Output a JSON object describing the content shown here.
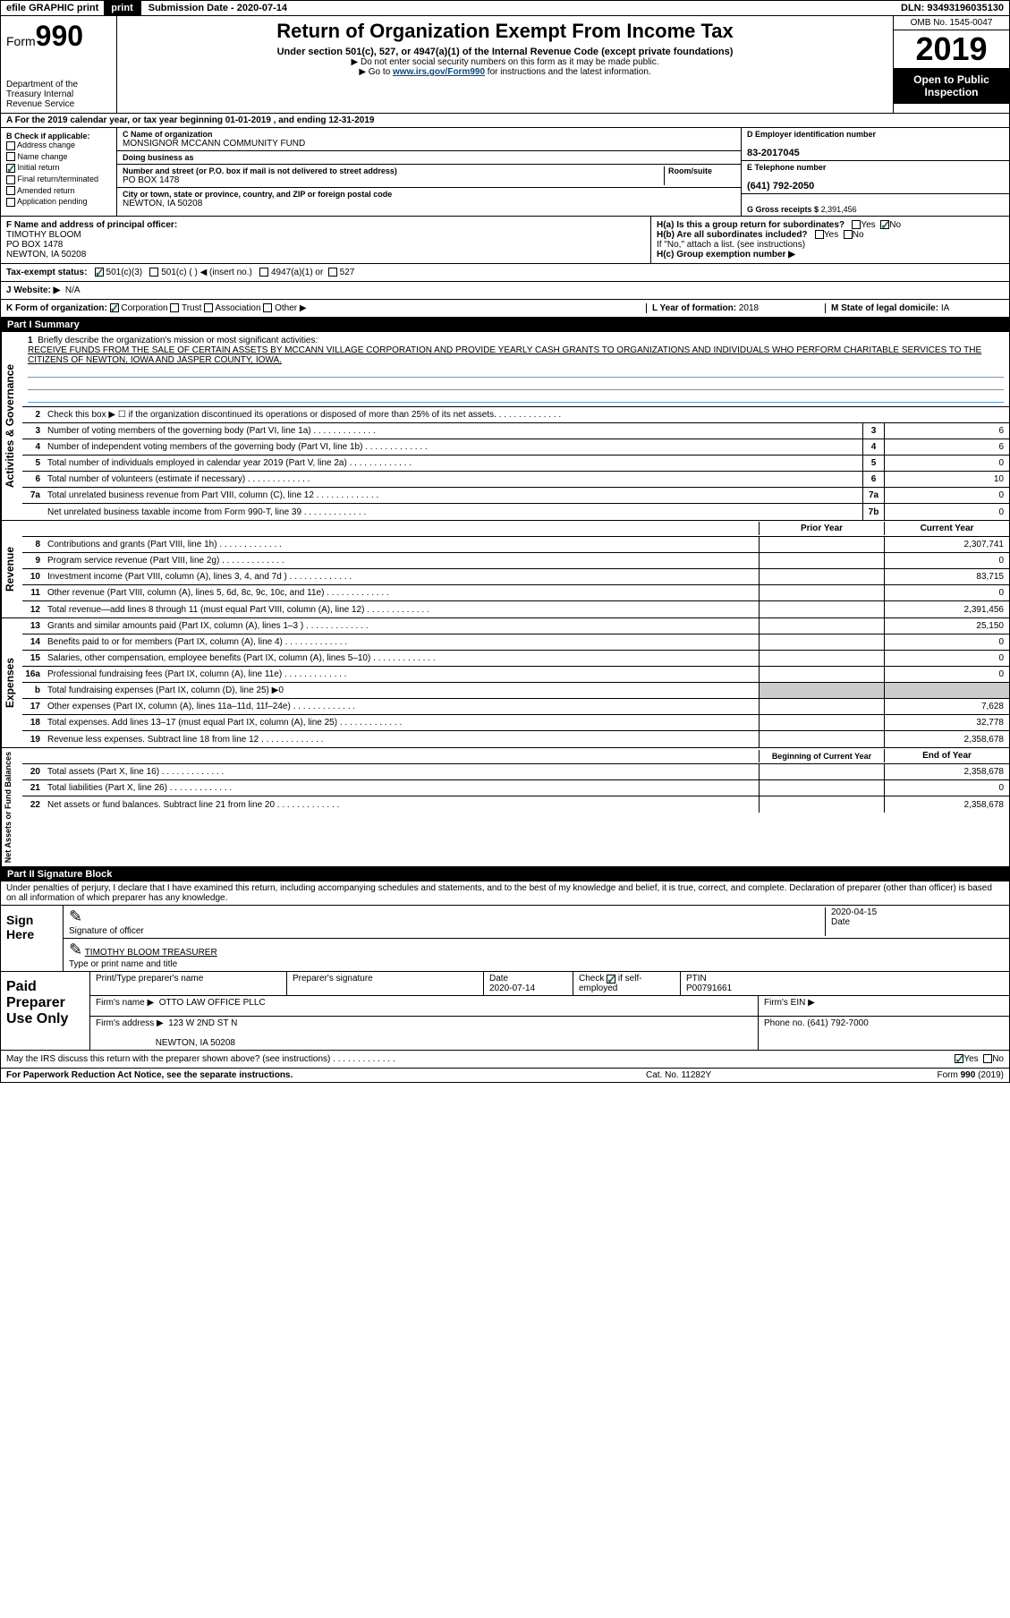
{
  "top": {
    "efile": "efile GRAPHIC print",
    "submission": "Submission Date - 2020-07-14",
    "dln": "DLN: 93493196035130"
  },
  "header": {
    "form": "Form",
    "form_num": "990",
    "dept": "Department of the Treasury Internal Revenue Service",
    "title": "Return of Organization Exempt From Income Tax",
    "sub1": "Under section 501(c), 527, or 4947(a)(1) of the Internal Revenue Code (except private foundations)",
    "sub2": "▶ Do not enter social security numbers on this form as it may be made public.",
    "sub3a": "▶ Go to ",
    "sub3_link": "www.irs.gov/Form990",
    "sub3b": " for instructions and the latest information.",
    "omb": "OMB No. 1545-0047",
    "year": "2019",
    "open": "Open to Public Inspection"
  },
  "line_a": "A For the 2019 calendar year, or tax year beginning 01-01-2019   , and ending 12-31-2019",
  "col_b": {
    "header": "B Check if applicable:",
    "items": [
      "Address change",
      "Name change",
      "Initial return",
      "Final return/terminated",
      "Amended return",
      "Application pending"
    ],
    "checked": 2
  },
  "col_c": {
    "name_label": "C Name of organization",
    "name": "MONSIGNOR MCCANN COMMUNITY FUND",
    "dba_label": "Doing business as",
    "addr_label": "Number and street (or P.O. box if mail is not delivered to street address)",
    "room_label": "Room/suite",
    "addr": "PO BOX 1478",
    "city_label": "City or town, state or province, country, and ZIP or foreign postal code",
    "city": "NEWTON, IA  50208",
    "officer_label": "F Name and address of principal officer:",
    "officer_name": "TIMOTHY BLOOM",
    "officer_addr1": "PO BOX 1478",
    "officer_addr2": "NEWTON, IA  50208"
  },
  "col_d": {
    "ein_label": "D Employer identification number",
    "ein": "83-2017045",
    "phone_label": "E Telephone number",
    "phone": "(641) 792-2050",
    "gross_label": "G Gross receipts $",
    "gross": "2,391,456"
  },
  "row_h": {
    "ha": "H(a)  Is this a group return for subordinates?",
    "ha_no": "No",
    "hb": "H(b)  Are all subordinates included?",
    "hb_note": "If \"No,\" attach a list. (see instructions)",
    "hc": "H(c)  Group exemption number ▶"
  },
  "tax_exempt": {
    "label": "Tax-exempt status:",
    "opt1": "501(c)(3)",
    "opt2": "501(c) (  ) ◀ (insert no.)",
    "opt3": "4947(a)(1) or",
    "opt4": "527"
  },
  "website": {
    "label": "J   Website: ▶",
    "val": "N/A"
  },
  "row_k": {
    "left": "K Form of organization:",
    "opts": [
      "Corporation",
      "Trust",
      "Association",
      "Other ▶"
    ],
    "checked": 0,
    "mid_label": "L Year of formation:",
    "mid_val": "2018",
    "right_label": "M State of legal domicile:",
    "right_val": "IA"
  },
  "part1": {
    "header": "Part I      Summary",
    "briefly_num": "1",
    "briefly_label": "Briefly describe the organization's mission or most significant activities:",
    "briefly_text": "RECEIVE FUNDS FROM THE SALE OF CERTAIN ASSETS BY MCCANN VILLAGE CORPORATION AND PROVIDE YEARLY CASH GRANTS TO ORGANIZATIONS AND INDIVIDUALS WHO PERFORM CHARITABLE SERVICES TO THE CITIZENS OF NEWTON, IOWA AND JASPER COUNTY, IOWA."
  },
  "gov_lines": [
    {
      "num": "2",
      "desc": "Check this box ▶ ☐  if the organization discontinued its operations or disposed of more than 25% of its net assets."
    },
    {
      "num": "3",
      "desc": "Number of voting members of the governing body (Part VI, line 1a)",
      "box": "3",
      "val": "6"
    },
    {
      "num": "4",
      "desc": "Number of independent voting members of the governing body (Part VI, line 1b)",
      "box": "4",
      "val": "6"
    },
    {
      "num": "5",
      "desc": "Total number of individuals employed in calendar year 2019 (Part V, line 2a)",
      "box": "5",
      "val": "0"
    },
    {
      "num": "6",
      "desc": "Total number of volunteers (estimate if necessary)",
      "box": "6",
      "val": "10"
    },
    {
      "num": "7a",
      "desc": "Total unrelated business revenue from Part VIII, column (C), line 12",
      "box": "7a",
      "val": "0"
    },
    {
      "num": "",
      "desc": "Net unrelated business taxable income from Form 990-T, line 39",
      "box": "7b",
      "val": "0"
    }
  ],
  "year_cols": {
    "prior": "Prior Year",
    "current": "Current Year"
  },
  "rev_lines": [
    {
      "num": "8",
      "desc": "Contributions and grants (Part VIII, line 1h)",
      "prior": "",
      "curr": "2,307,741"
    },
    {
      "num": "9",
      "desc": "Program service revenue (Part VIII, line 2g)",
      "prior": "",
      "curr": "0"
    },
    {
      "num": "10",
      "desc": "Investment income (Part VIII, column (A), lines 3, 4, and 7d )",
      "prior": "",
      "curr": "83,715"
    },
    {
      "num": "11",
      "desc": "Other revenue (Part VIII, column (A), lines 5, 6d, 8c, 9c, 10c, and 11e)",
      "prior": "",
      "curr": "0"
    },
    {
      "num": "12",
      "desc": "Total revenue—add lines 8 through 11 (must equal Part VIII, column (A), line 12)",
      "prior": "",
      "curr": "2,391,456"
    }
  ],
  "exp_lines": [
    {
      "num": "13",
      "desc": "Grants and similar amounts paid (Part IX, column (A), lines 1–3 )",
      "prior": "",
      "curr": "25,150"
    },
    {
      "num": "14",
      "desc": "Benefits paid to or for members (Part IX, column (A), line 4)",
      "prior": "",
      "curr": "0"
    },
    {
      "num": "15",
      "desc": "Salaries, other compensation, employee benefits (Part IX, column (A), lines 5–10)",
      "prior": "",
      "curr": "0"
    },
    {
      "num": "16a",
      "desc": "Professional fundraising fees (Part IX, column (A), line 11e)",
      "prior": "",
      "curr": "0"
    },
    {
      "num": "b",
      "desc": "Total fundraising expenses (Part IX, column (D), line 25) ▶0",
      "grey": true
    },
    {
      "num": "17",
      "desc": "Other expenses (Part IX, column (A), lines 11a–11d, 11f–24e)",
      "prior": "",
      "curr": "7,628"
    },
    {
      "num": "18",
      "desc": "Total expenses. Add lines 13–17 (must equal Part IX, column (A), line 25)",
      "prior": "",
      "curr": "32,778"
    },
    {
      "num": "19",
      "desc": "Revenue less expenses. Subtract line 18 from line 12",
      "prior": "",
      "curr": "2,358,678"
    }
  ],
  "net_cols": {
    "begin": "Beginning of Current Year",
    "end": "End of Year"
  },
  "net_lines": [
    {
      "num": "20",
      "desc": "Total assets (Part X, line 16)",
      "begin": "",
      "end": "2,358,678"
    },
    {
      "num": "21",
      "desc": "Total liabilities (Part X, line 26)",
      "begin": "",
      "end": "0"
    },
    {
      "num": "22",
      "desc": "Net assets or fund balances. Subtract line 21 from line 20",
      "begin": "",
      "end": "2,358,678"
    }
  ],
  "part2": {
    "header": "Part II      Signature Block",
    "declaration": "Under penalties of perjury, I declare that I have examined this return, including accompanying schedules and statements, and to the best of my knowledge and belief, it is true, correct, and complete. Declaration of preparer (other than officer) is based on all information of which preparer has any knowledge."
  },
  "sign": {
    "label": "Sign Here",
    "sig_label": "Signature of officer",
    "date_label": "Date",
    "date": "2020-04-15",
    "name": "TIMOTHY BLOOM  TREASURER",
    "name_label": "Type or print name and title"
  },
  "paid": {
    "label": "Paid Preparer Use Only",
    "print_label": "Print/Type preparer's name",
    "sig_label": "Preparer's signature",
    "date_label": "Date",
    "date": "2020-07-14",
    "check_label": "Check ",
    "check_suffix": " if self-employed",
    "ptin_label": "PTIN",
    "ptin": "P00791661",
    "firm_name_label": "Firm's name    ▶",
    "firm_name": "OTTO LAW OFFICE PLLC",
    "firm_ein_label": "Firm's EIN ▶",
    "firm_addr_label": "Firm's address ▶",
    "firm_addr1": "123 W 2ND ST N",
    "firm_addr2": "NEWTON, IA  50208",
    "firm_phone_label": "Phone no.",
    "firm_phone": "(641) 792-7000"
  },
  "discuss": {
    "text": "May the IRS discuss this return with the preparer shown above? (see instructions)",
    "yes": "Yes",
    "no": "No"
  },
  "footer": {
    "left": "For Paperwork Reduction Act Notice, see the separate instructions.",
    "mid": "Cat. No. 11282Y",
    "right_a": "Form ",
    "right_b": "990",
    "right_c": " (2019)"
  },
  "side_labels": {
    "gov": "Activities & Governance",
    "rev": "Revenue",
    "exp": "Expenses",
    "net": "Net Assets or Fund Balances"
  }
}
